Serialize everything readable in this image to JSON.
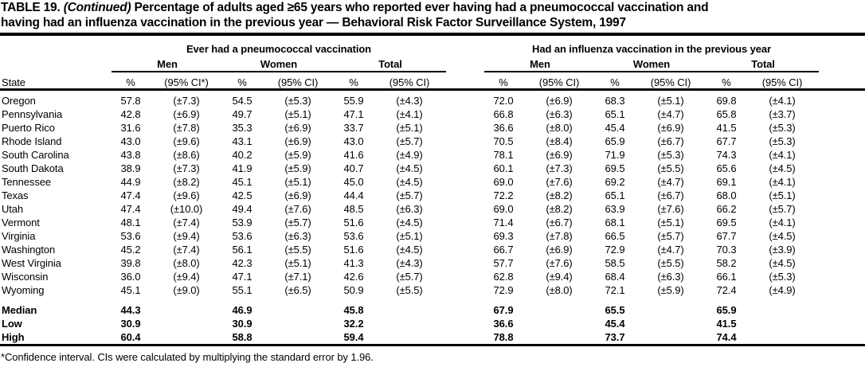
{
  "title": {
    "prefix": "TABLE 19.",
    "continued": "(Continued)",
    "line1_rest": "Percentage of adults aged ≥65 years who reported ever having had a pneumococcal vaccination and",
    "line2": "having had an influenza vaccination in the previous year — Behavioral Risk Factor Surveillance System, 1997"
  },
  "table": {
    "groups": [
      {
        "label": "Ever had a pneumococcal vaccination"
      },
      {
        "label": "Had an influenza vaccination in the previous year"
      }
    ],
    "subgroups": [
      "Men",
      "Women",
      "Total"
    ],
    "state_header": "State",
    "percent_header": "%",
    "ci_headers": {
      "first": "(95% CI*)",
      "rest": "(95% CI)"
    },
    "rows": [
      {
        "state": "Oregon",
        "values": [
          "57.8",
          "(±7.3)",
          "54.5",
          "(±5.3)",
          "55.9",
          "(±4.3)",
          "72.0",
          "(±6.9)",
          "68.3",
          "(±5.1)",
          "69.8",
          "(±4.1)"
        ]
      },
      {
        "state": "Pennsylvania",
        "values": [
          "42.8",
          "(±6.9)",
          "49.7",
          "(±5.1)",
          "47.1",
          "(±4.1)",
          "66.8",
          "(±6.3)",
          "65.1",
          "(±4.7)",
          "65.8",
          "(±3.7)"
        ]
      },
      {
        "state": "Puerto Rico",
        "values": [
          "31.6",
          "(±7.8)",
          "35.3",
          "(±6.9)",
          "33.7",
          "(±5.1)",
          "36.6",
          "(±8.0)",
          "45.4",
          "(±6.9)",
          "41.5",
          "(±5.3)"
        ]
      },
      {
        "state": "Rhode Island",
        "values": [
          "43.0",
          "(±9.6)",
          "43.1",
          "(±6.9)",
          "43.0",
          "(±5.7)",
          "70.5",
          "(±8.4)",
          "65.9",
          "(±6.7)",
          "67.7",
          "(±5.3)"
        ]
      },
      {
        "state": "South Carolina",
        "values": [
          "43.8",
          "(±8.6)",
          "40.2",
          "(±5.9)",
          "41.6",
          "(±4.9)",
          "78.1",
          "(±6.9)",
          "71.9",
          "(±5.3)",
          "74.3",
          "(±4.1)"
        ]
      },
      {
        "state": "South Dakota",
        "values": [
          "38.9",
          "(±7.3)",
          "41.9",
          "(±5.9)",
          "40.7",
          "(±4.5)",
          "60.1",
          "(±7.3)",
          "69.5",
          "(±5.5)",
          "65.6",
          "(±4.5)"
        ]
      },
      {
        "state": "Tennessee",
        "values": [
          "44.9",
          "(±8.2)",
          "45.1",
          "(±5.1)",
          "45.0",
          "(±4.5)",
          "69.0",
          "(±7.6)",
          "69.2",
          "(±4.7)",
          "69.1",
          "(±4.1)"
        ]
      },
      {
        "state": "Texas",
        "values": [
          "47.4",
          "(±9.6)",
          "42.5",
          "(±6.9)",
          "44.4",
          "(±5.7)",
          "72.2",
          "(±8.2)",
          "65.1",
          "(±6.7)",
          "68.0",
          "(±5.1)"
        ]
      },
      {
        "state": "Utah",
        "values": [
          "47.4",
          "(±10.0)",
          "49.4",
          "(±7.6)",
          "48.5",
          "(±6.3)",
          "69.0",
          "(±8.2)",
          "63.9",
          "(±7.6)",
          "66.2",
          "(±5.7)"
        ]
      },
      {
        "state": "Vermont",
        "values": [
          "48.1",
          "(±7.4)",
          "53.9",
          "(±5.7)",
          "51.6",
          "(±4.5)",
          "71.4",
          "(±6.7)",
          "68.1",
          "(±5.1)",
          "69.5",
          "(±4.1)"
        ]
      },
      {
        "state": "Virginia",
        "values": [
          "53.6",
          "(±9.4)",
          "53.6",
          "(±6.3)",
          "53.6",
          "(±5.1)",
          "69.3",
          "(±7.8)",
          "66.5",
          "(±5.7)",
          "67.7",
          "(±4.5)"
        ]
      },
      {
        "state": "Washington",
        "values": [
          "45.2",
          "(±7.4)",
          "56.1",
          "(±5.5)",
          "51.6",
          "(±4.5)",
          "66.7",
          "(±6.9)",
          "72.9",
          "(±4.7)",
          "70.3",
          "(±3.9)"
        ]
      },
      {
        "state": "West Virginia",
        "values": [
          "39.8",
          "(±8.0)",
          "42.3",
          "(±5.1)",
          "41.3",
          "(±4.3)",
          "57.7",
          "(±7.6)",
          "58.5",
          "(±5.5)",
          "58.2",
          "(±4.5)"
        ]
      },
      {
        "state": "Wisconsin",
        "values": [
          "36.0",
          "(±9.4)",
          "47.1",
          "(±7.1)",
          "42.6",
          "(±5.7)",
          "62.8",
          "(±9.4)",
          "68.4",
          "(±6.3)",
          "66.1",
          "(±5.3)"
        ]
      },
      {
        "state": "Wyoming",
        "values": [
          "45.1",
          "(±9.0)",
          "55.1",
          "(±6.5)",
          "50.9",
          "(±5.5)",
          "72.9",
          "(±8.0)",
          "72.1",
          "(±5.9)",
          "72.4",
          "(±4.9)"
        ]
      }
    ],
    "summary_rows": [
      {
        "label": "Median",
        "values": [
          "44.3",
          "",
          "46.9",
          "",
          "45.8",
          "",
          "67.9",
          "",
          "65.5",
          "",
          "65.9",
          ""
        ]
      },
      {
        "label": "Low",
        "values": [
          "30.9",
          "",
          "30.9",
          "",
          "32.2",
          "",
          "36.6",
          "",
          "45.4",
          "",
          "41.5",
          ""
        ]
      },
      {
        "label": "High",
        "values": [
          "60.4",
          "",
          "58.8",
          "",
          "59.4",
          "",
          "78.8",
          "",
          "73.7",
          "",
          "74.4",
          ""
        ]
      }
    ]
  },
  "footnote": "*Confidence interval. CIs were calculated by multiplying the standard error by 1.96."
}
